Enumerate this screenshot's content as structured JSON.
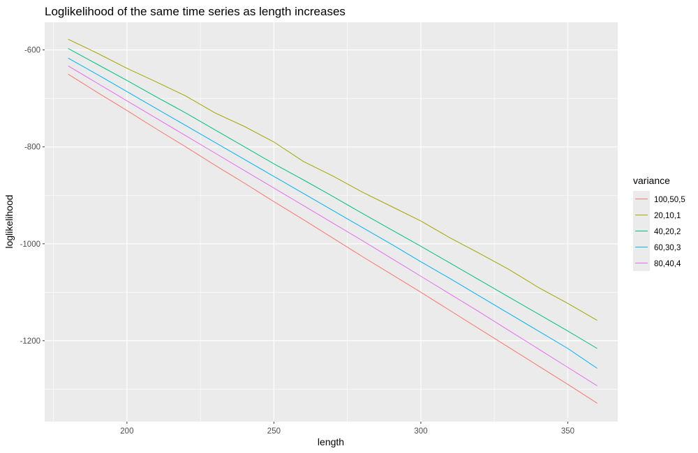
{
  "chart_data": {
    "type": "line",
    "title": "Loglikelihood of the same time series as length increases",
    "xlabel": "length",
    "ylabel": "loglikelihood",
    "xlim": [
      172,
      367
    ],
    "ylim": [
      -1367,
      -543
    ],
    "x_ticks": [
      200,
      250,
      300,
      350
    ],
    "x_tick_labels": [
      "200",
      "250",
      "300",
      "350"
    ],
    "y_ticks": [
      -600,
      -800,
      -1000,
      -1200
    ],
    "y_tick_labels": [
      "-600",
      "-800",
      "-1000",
      "-1200"
    ],
    "x_minor_ticks": [
      175,
      225,
      275,
      325
    ],
    "y_minor_ticks": [
      -700,
      -900,
      -1100,
      -1300
    ],
    "grid": true,
    "panel_background": "#ebebeb",
    "grid_color": "#ffffff",
    "legend": {
      "title": "variance",
      "position": "right"
    },
    "series": [
      {
        "name": "100,50,5",
        "color": "#F8766D",
        "x": [
          180,
          190,
          200,
          210,
          220,
          230,
          240,
          250,
          260,
          270,
          280,
          290,
          300,
          310,
          320,
          330,
          340,
          350,
          360
        ],
        "y": [
          -650,
          -688,
          -725,
          -763,
          -800,
          -838,
          -875,
          -913,
          -950,
          -988,
          -1026,
          -1063,
          -1100,
          -1138,
          -1176,
          -1214,
          -1252,
          -1290,
          -1329
        ]
      },
      {
        "name": "20,10,1",
        "color": "#A3A500",
        "x": [
          180,
          190,
          200,
          210,
          220,
          230,
          240,
          250,
          260,
          270,
          280,
          290,
          300,
          310,
          320,
          330,
          340,
          350,
          360
        ],
        "y": [
          -578,
          -607,
          -638,
          -666,
          -695,
          -730,
          -758,
          -790,
          -830,
          -860,
          -893,
          -923,
          -953,
          -988,
          -1020,
          -1053,
          -1090,
          -1123,
          -1158
        ]
      },
      {
        "name": "40,20,2",
        "color": "#00BF7D",
        "x": [
          180,
          190,
          200,
          210,
          220,
          230,
          240,
          250,
          260,
          270,
          280,
          290,
          300,
          310,
          320,
          330,
          340,
          350,
          360
        ],
        "y": [
          -597,
          -630,
          -663,
          -697,
          -730,
          -765,
          -800,
          -835,
          -868,
          -902,
          -937,
          -971,
          -1005,
          -1040,
          -1075,
          -1110,
          -1145,
          -1180,
          -1216
        ]
      },
      {
        "name": "60,30,3",
        "color": "#00B0F6",
        "x": [
          180,
          190,
          200,
          210,
          220,
          230,
          240,
          250,
          260,
          270,
          280,
          290,
          300,
          310,
          320,
          330,
          340,
          350,
          360
        ],
        "y": [
          -617,
          -651,
          -686,
          -721,
          -756,
          -791,
          -826,
          -861,
          -896,
          -931,
          -966,
          -1001,
          -1037,
          -1072,
          -1108,
          -1144,
          -1180,
          -1216,
          -1257
        ]
      },
      {
        "name": "80,40,4",
        "color": "#E76BF3",
        "x": [
          180,
          190,
          200,
          210,
          220,
          230,
          240,
          250,
          260,
          270,
          280,
          290,
          300,
          310,
          320,
          330,
          340,
          350,
          360
        ],
        "y": [
          -633,
          -669,
          -705,
          -741,
          -777,
          -813,
          -849,
          -885,
          -921,
          -957,
          -993,
          -1030,
          -1067,
          -1104,
          -1141,
          -1179,
          -1217,
          -1255,
          -1293
        ]
      }
    ]
  }
}
